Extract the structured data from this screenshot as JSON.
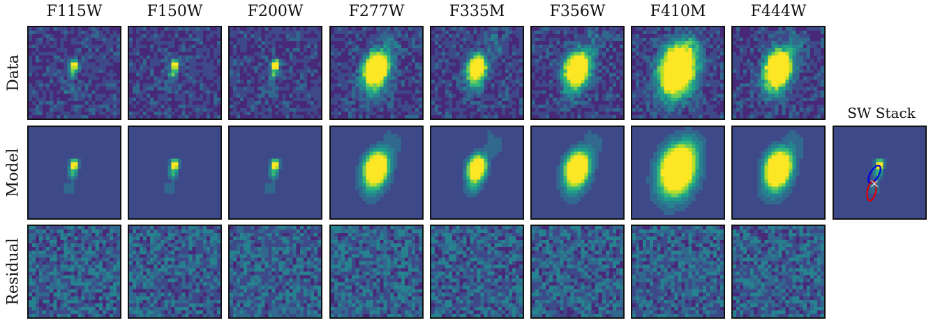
{
  "figure": {
    "columns": [
      {
        "filter": "F115W",
        "long_wave": false,
        "source_size": 1.0
      },
      {
        "filter": "F150W",
        "long_wave": false,
        "source_size": 1.0
      },
      {
        "filter": "F200W",
        "long_wave": false,
        "source_size": 1.0
      },
      {
        "filter": "F277W",
        "long_wave": true,
        "source_size": 1.0
      },
      {
        "filter": "F335M",
        "long_wave": true,
        "source_size": 0.75
      },
      {
        "filter": "F356W",
        "long_wave": true,
        "source_size": 1.0
      },
      {
        "filter": "F410M",
        "long_wave": true,
        "source_size": 1.45
      },
      {
        "filter": "F444W",
        "long_wave": true,
        "source_size": 1.1
      }
    ],
    "rows": [
      {
        "label": "Data",
        "kind": "data"
      },
      {
        "label": "Model",
        "kind": "model"
      },
      {
        "label": "Residual",
        "kind": "residual"
      }
    ],
    "stack_panel": {
      "label": "SW Stack",
      "ellipses": [
        {
          "color": "#0000dd"
        },
        {
          "color": "#dd0000"
        }
      ],
      "marker": {
        "symbol": "×",
        "color": "#c8d4d0"
      }
    },
    "colormap": [
      "#440154",
      "#482878",
      "#3e4989",
      "#31688e",
      "#26828e",
      "#1f9e89",
      "#35b779",
      "#6ece58",
      "#b5de2b",
      "#fde725"
    ]
  }
}
